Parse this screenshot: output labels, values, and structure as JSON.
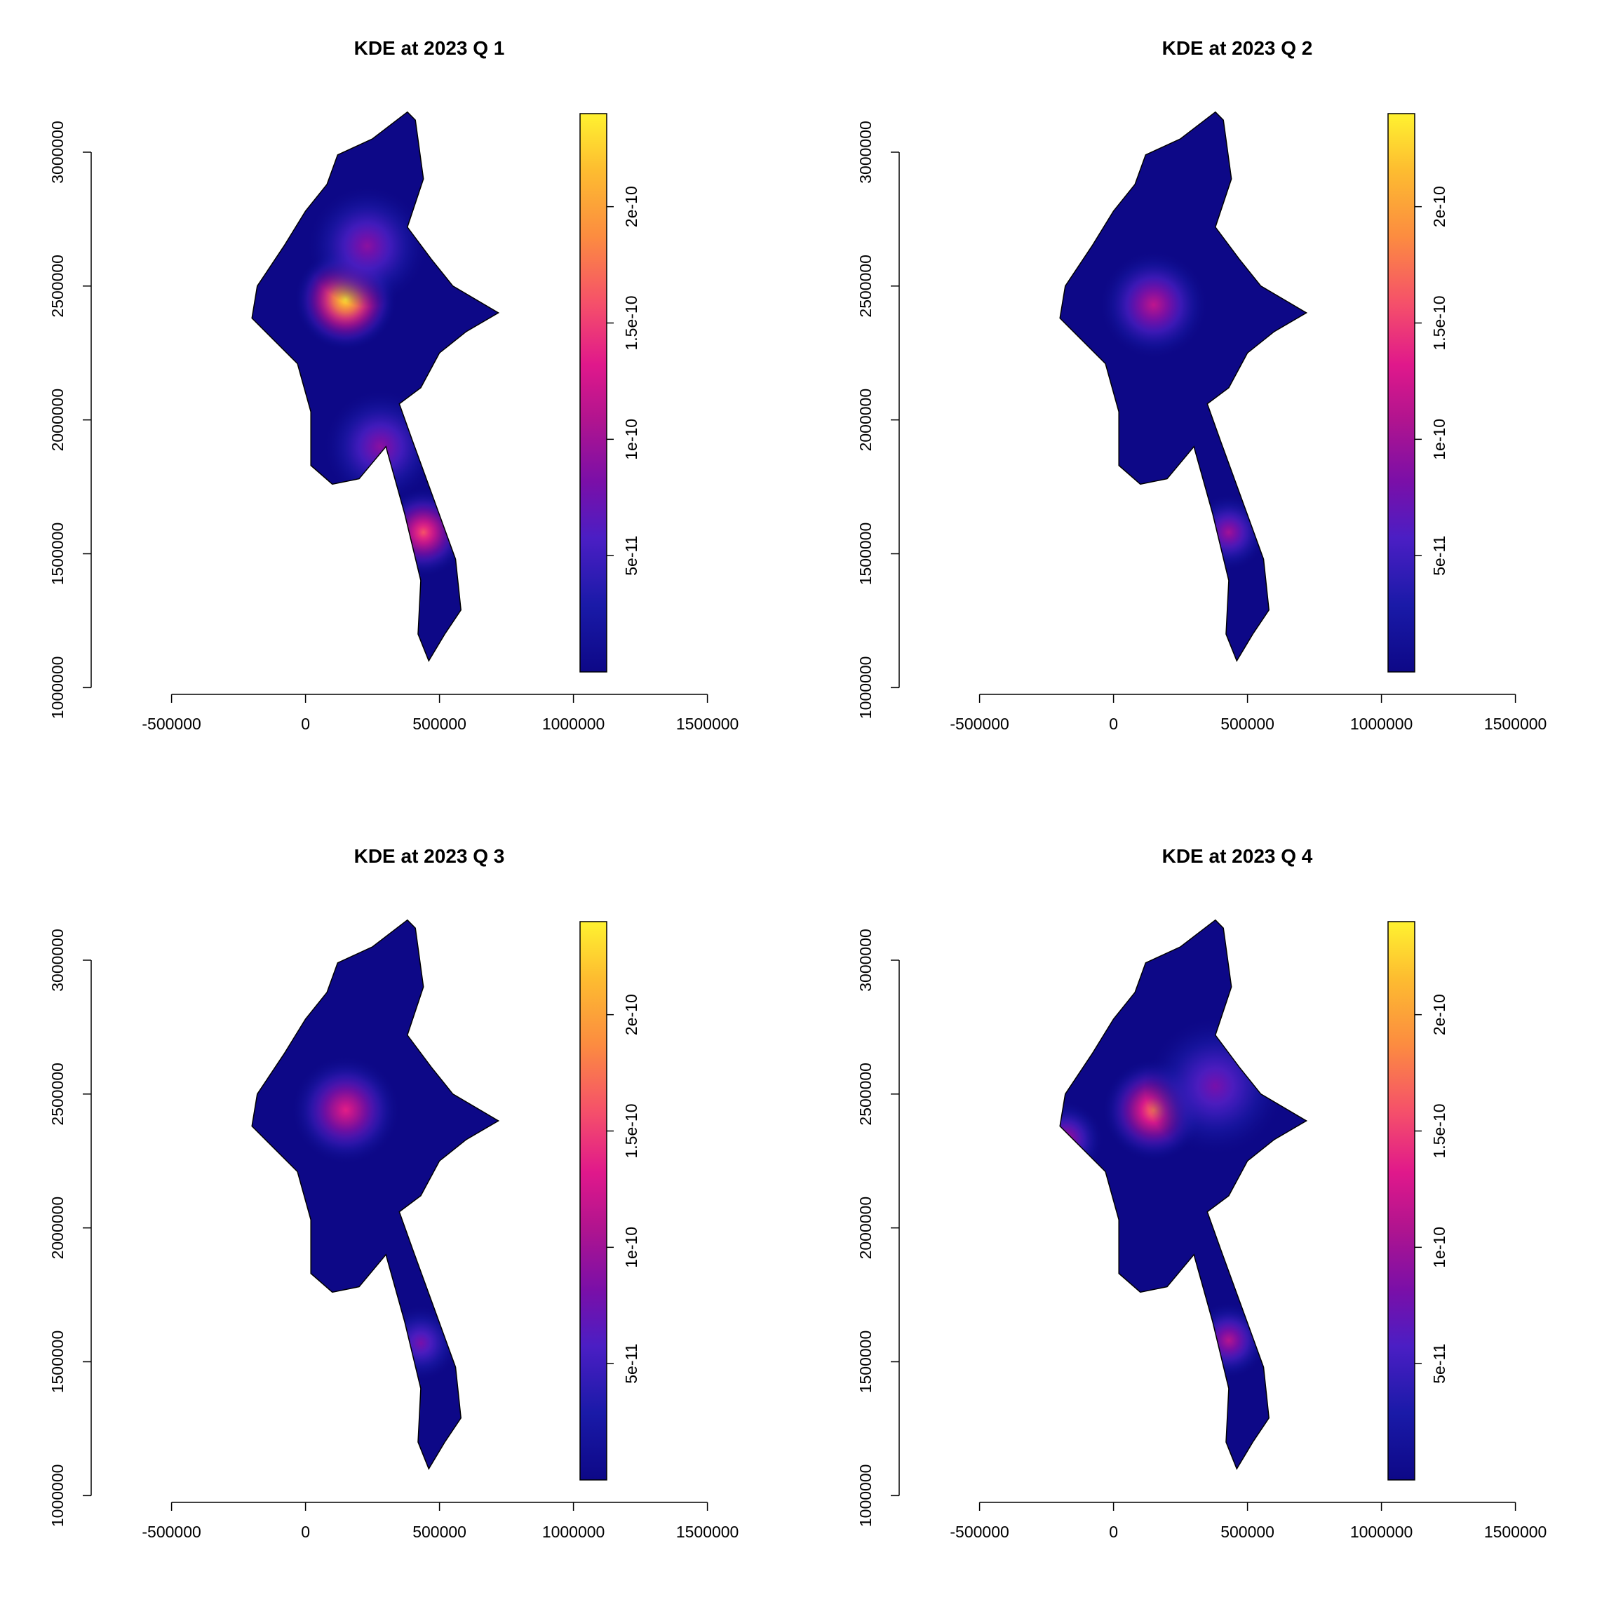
{
  "colors": {
    "low": "#0D0887",
    "mid": "#E0188B",
    "high": "#FFF230",
    "outline": "#000000"
  },
  "chart_data": [
    {
      "type": "heatmap",
      "title": "KDE at 2023 Q 1",
      "xticks": [
        "-500000",
        "0",
        "500000",
        "1000000",
        "1500000"
      ],
      "yticks": [
        "1000000",
        "1500000",
        "2000000",
        "2500000",
        "3000000"
      ],
      "xlim": [
        -800000,
        1700000
      ],
      "ylim": [
        980000,
        3220000
      ],
      "legend": {
        "ticks": [
          "5e-11",
          "1e-10",
          "1.5e-10",
          "2e-10"
        ],
        "range": [
          0,
          2.4e-10
        ],
        "placement": "right"
      },
      "hotspots": [
        {
          "x": 150000,
          "y": 2450000,
          "sigma": 80000,
          "peak": 2.35e-10
        },
        {
          "x": 230000,
          "y": 2650000,
          "sigma": 95000,
          "peak": 9e-11
        },
        {
          "x": 280000,
          "y": 1900000,
          "sigma": 90000,
          "peak": 9e-11
        },
        {
          "x": 440000,
          "y": 1580000,
          "sigma": 70000,
          "peak": 1.6e-10
        }
      ]
    },
    {
      "type": "heatmap",
      "title": "KDE at 2023 Q 2",
      "xticks": [
        "-500000",
        "0",
        "500000",
        "1000000",
        "1500000"
      ],
      "yticks": [
        "1000000",
        "1500000",
        "2000000",
        "2500000",
        "3000000"
      ],
      "xlim": [
        -800000,
        1700000
      ],
      "ylim": [
        980000,
        3220000
      ],
      "legend": {
        "ticks": [
          "5e-11",
          "1e-10",
          "1.5e-10",
          "2e-10"
        ],
        "range": [
          0,
          2.4e-10
        ],
        "placement": "right"
      },
      "hotspots": [
        {
          "x": 150000,
          "y": 2430000,
          "sigma": 85000,
          "peak": 1.15e-10
        },
        {
          "x": 430000,
          "y": 1580000,
          "sigma": 60000,
          "peak": 1e-10
        }
      ]
    },
    {
      "type": "heatmap",
      "title": "KDE at 2023 Q 3",
      "xticks": [
        "-500000",
        "0",
        "500000",
        "1000000",
        "1500000"
      ],
      "yticks": [
        "1000000",
        "1500000",
        "2000000",
        "2500000",
        "3000000"
      ],
      "xlim": [
        -800000,
        1700000
      ],
      "ylim": [
        980000,
        3220000
      ],
      "legend": {
        "ticks": [
          "5e-11",
          "1e-10",
          "1.5e-10",
          "2e-10"
        ],
        "range": [
          0,
          2.4e-10
        ],
        "placement": "right"
      },
      "hotspots": [
        {
          "x": 150000,
          "y": 2440000,
          "sigma": 85000,
          "peak": 1.35e-10
        },
        {
          "x": 430000,
          "y": 1570000,
          "sigma": 60000,
          "peak": 8e-11
        }
      ]
    },
    {
      "type": "heatmap",
      "title": "KDE at 2023 Q 4",
      "xticks": [
        "-500000",
        "0",
        "500000",
        "1000000",
        "1500000"
      ],
      "yticks": [
        "1000000",
        "1500000",
        "2000000",
        "2500000",
        "3000000"
      ],
      "xlim": [
        -800000,
        1700000
      ],
      "ylim": [
        980000,
        3220000
      ],
      "legend": {
        "ticks": [
          "5e-11",
          "1e-10",
          "1.5e-10",
          "2e-10"
        ],
        "range": [
          0,
          2.4e-10
        ],
        "placement": "right"
      },
      "hotspots": [
        {
          "x": 150000,
          "y": 2440000,
          "sigma": 80000,
          "peak": 1.75e-10
        },
        {
          "x": 380000,
          "y": 2530000,
          "sigma": 110000,
          "peak": 8e-11
        },
        {
          "x": -180000,
          "y": 2330000,
          "sigma": 60000,
          "peak": 1.05e-10
        },
        {
          "x": 430000,
          "y": 1580000,
          "sigma": 60000,
          "peak": 1.1e-10
        }
      ]
    }
  ],
  "country_outline": [
    [
      380000,
      3150000
    ],
    [
      410000,
      3120000
    ],
    [
      440000,
      2900000
    ],
    [
      380000,
      2720000
    ],
    [
      470000,
      2600000
    ],
    [
      550000,
      2500000
    ],
    [
      720000,
      2400000
    ],
    [
      600000,
      2330000
    ],
    [
      500000,
      2250000
    ],
    [
      430000,
      2120000
    ],
    [
      350000,
      2060000
    ],
    [
      400000,
      1920000
    ],
    [
      480000,
      1700000
    ],
    [
      560000,
      1480000
    ],
    [
      580000,
      1290000
    ],
    [
      520000,
      1200000
    ],
    [
      460000,
      1100000
    ],
    [
      420000,
      1200000
    ],
    [
      430000,
      1400000
    ],
    [
      370000,
      1650000
    ],
    [
      300000,
      1900000
    ],
    [
      200000,
      1780000
    ],
    [
      100000,
      1760000
    ],
    [
      20000,
      1830000
    ],
    [
      20000,
      2030000
    ],
    [
      -30000,
      2210000
    ],
    [
      -200000,
      2380000
    ],
    [
      -180000,
      2500000
    ],
    [
      -80000,
      2650000
    ],
    [
      0,
      2780000
    ],
    [
      80000,
      2880000
    ],
    [
      120000,
      2990000
    ],
    [
      250000,
      3050000
    ]
  ]
}
